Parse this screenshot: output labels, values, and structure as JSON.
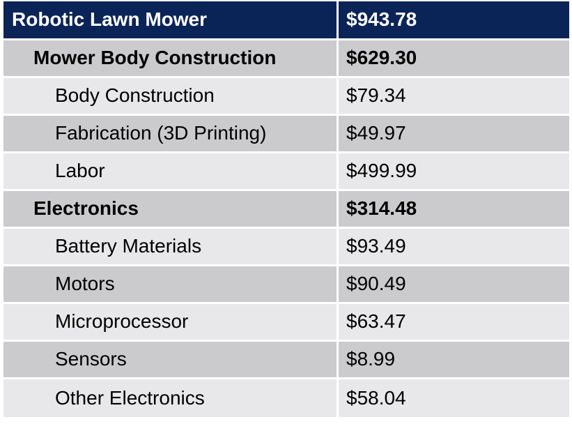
{
  "table": {
    "header": {
      "label": "Robotic Lawn Mower",
      "amount": "$943.78"
    },
    "rows": [
      {
        "type": "section",
        "label": "Mower Body Construction",
        "amount": "$629.30"
      },
      {
        "type": "item",
        "label": "Body Construction",
        "amount": "$79.34"
      },
      {
        "type": "item",
        "label": "Fabrication (3D Printing)",
        "amount": "$49.97"
      },
      {
        "type": "item",
        "label": "Labor",
        "amount": "$499.99"
      },
      {
        "type": "section",
        "label": "Electronics",
        "amount": "$314.48"
      },
      {
        "type": "item",
        "label": "Battery Materials",
        "amount": "$93.49"
      },
      {
        "type": "item",
        "label": "Motors",
        "amount": "$90.49"
      },
      {
        "type": "item",
        "label": "Microprocessor",
        "amount": "$63.47"
      },
      {
        "type": "item",
        "label": "Sensors",
        "amount": "$8.99"
      },
      {
        "type": "item",
        "label": "Other Electronics",
        "amount": "$58.04"
      }
    ]
  },
  "colors": {
    "header_background": "#0b2457",
    "header_text": "#ffffff",
    "row_dark": "#cbcbcd",
    "row_light": "#e8e8ea"
  }
}
